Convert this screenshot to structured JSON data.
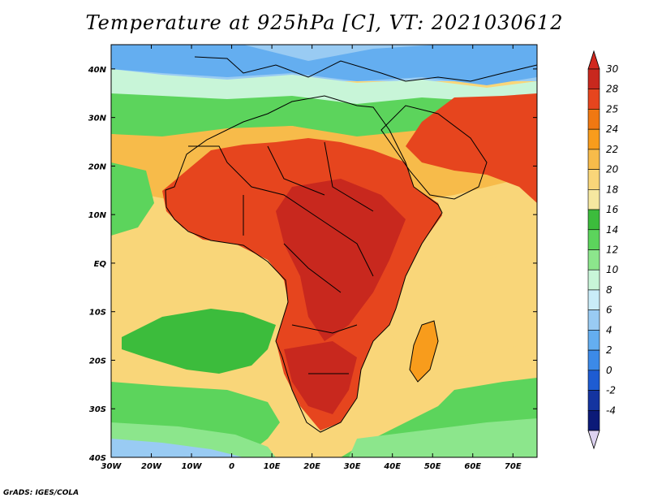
{
  "title": "Temperature at 925hPa [C], VT: 2021030612",
  "footer": "GrADS: IGES/COLA",
  "map": {
    "lon_range": [
      -30,
      76
    ],
    "lat_range": [
      -40,
      45
    ],
    "lon_ticks": [
      "30W",
      "20W",
      "10W",
      "0",
      "10E",
      "20E",
      "30E",
      "40E",
      "50E",
      "60E",
      "70E"
    ],
    "lat_ticks": [
      "40N",
      "30N",
      "20N",
      "10N",
      "EQ",
      "10S",
      "20S",
      "30S",
      "40S"
    ]
  },
  "colorbar": {
    "labels": [
      "30",
      "28",
      "25",
      "24",
      "22",
      "20",
      "18",
      "16",
      "14",
      "12",
      "10",
      "8",
      "6",
      "4",
      "2",
      "0",
      "-2",
      "-4"
    ],
    "colors": [
      "#c8281e",
      "#e6451e",
      "#f07812",
      "#f89c1c",
      "#f7bb4a",
      "#f9d679",
      "#f5e8a0",
      "#3cbc3c",
      "#5cd45c",
      "#8ce68c",
      "#c8f5d8",
      "#c9ecf8",
      "#99cbf3",
      "#64aef0",
      "#3c8ae8",
      "#1e5cd2",
      "#1434a0",
      "#0c1a78"
    ],
    "top_arrow_color": "#d2281e",
    "bottom_arrow_color": "#dcd2f0"
  }
}
